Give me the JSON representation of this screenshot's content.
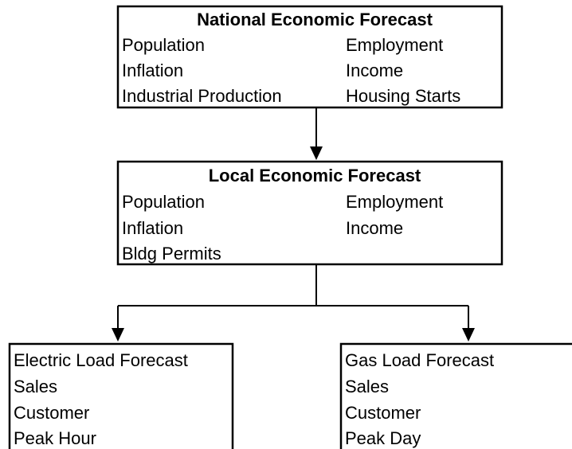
{
  "nodes": [
    {
      "title": "National Economic Forecast",
      "items": [
        "Population",
        "Employment",
        "Inflation",
        "Income",
        "Industrial Production",
        "Housing Starts"
      ]
    },
    {
      "title": "Local Economic Forecast",
      "items": [
        "Population",
        "Employment",
        "Inflation",
        "Income",
        "Bldg Permits"
      ]
    },
    {
      "title": "Electric Load Forecast",
      "items": [
        "Sales",
        "Customer",
        "Peak Hour"
      ]
    },
    {
      "title": "Gas Load Forecast",
      "items": [
        "Sales",
        "Customer",
        "Peak Day"
      ]
    }
  ]
}
